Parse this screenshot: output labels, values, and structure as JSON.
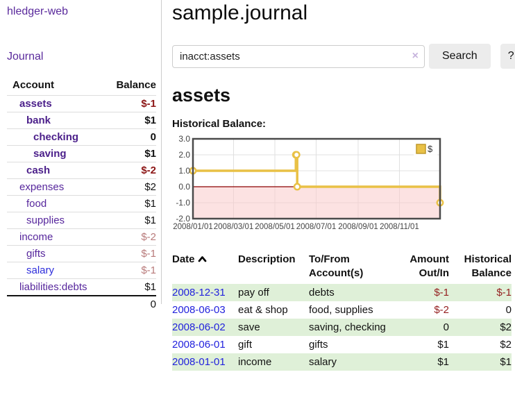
{
  "colors": {
    "link_purple": "#56269c",
    "link_blue": "#2d2ddb",
    "negative_strong": "#8c1616",
    "negative_dim": "#b87a7a",
    "negative_table": "#941f1f",
    "row_stripe_green": "#dff0d8",
    "chart_line_gold": "#e9c146",
    "chart_negative_fill": "#f9caca",
    "chart_zero_line": "#8b0000"
  },
  "brand": {
    "title": "hledger-web"
  },
  "nav": {
    "journal": "Journal"
  },
  "sidebar": {
    "headers": {
      "account": "Account",
      "balance": "Balance"
    },
    "rows": [
      {
        "account": "assets",
        "balance": "$-1",
        "level": 1,
        "matched": true
      },
      {
        "account": "bank",
        "balance": "$1",
        "level": 2,
        "matched": true
      },
      {
        "account": "checking",
        "balance": "0",
        "level": 3,
        "matched": true
      },
      {
        "account": "saving",
        "balance": "$1",
        "level": 3,
        "matched": true
      },
      {
        "account": "cash",
        "balance": "$-2",
        "level": 2,
        "matched": true
      },
      {
        "account": "expenses",
        "balance": "$2",
        "level": 1,
        "matched": false
      },
      {
        "account": "food",
        "balance": "$1",
        "level": 2,
        "matched": false
      },
      {
        "account": "supplies",
        "balance": "$1",
        "level": 2,
        "matched": false
      },
      {
        "account": "income",
        "balance": "$-2",
        "level": 1,
        "matched": false
      },
      {
        "account": "gifts",
        "balance": "$-1",
        "level": 2,
        "matched": false
      },
      {
        "account": "salary",
        "balance": "$-1",
        "level": 2,
        "matched": false,
        "blue_link": true
      },
      {
        "account": "liabilities:debts",
        "balance": "$1",
        "level": 1,
        "matched": false
      }
    ],
    "total": "0"
  },
  "main": {
    "title": "sample.journal",
    "search": {
      "value": "inacct:assets",
      "clear": "×",
      "search_label": "Search",
      "help_label": "?"
    },
    "account_heading": "assets",
    "chart_label": "Historical Balance:"
  },
  "chart_data": {
    "type": "line",
    "step": true,
    "title": "Historical Balance",
    "series": [
      {
        "name": "$",
        "points": [
          [
            "2008-01-01",
            1
          ],
          [
            "2008-06-01",
            2
          ],
          [
            "2008-06-02",
            2
          ],
          [
            "2008-06-03",
            0
          ],
          [
            "2008-12-31",
            -1
          ]
        ]
      }
    ],
    "x_range": [
      "2008-01-01",
      "2008-12-31"
    ],
    "ylim": [
      -2,
      3
    ],
    "y_ticks": [
      "3.0",
      "2.0",
      "1.0",
      "0.0",
      "-1.0",
      "-2.0"
    ],
    "x_ticks": [
      "2008/01/01",
      "2008/03/01",
      "2008/05/01",
      "2008/07/01",
      "2008/09/01",
      "2008/11/01"
    ],
    "legend_position": "top-right",
    "grid": true,
    "negative_region_shaded": true
  },
  "register": {
    "headers": {
      "date": "Date",
      "description": "Description",
      "accounts": "To/From Account(s)",
      "amount": "Amount Out/In",
      "balance": "Historical Balance"
    },
    "rows": [
      {
        "date": "2008-12-31",
        "description": "pay off",
        "accounts": "debts",
        "amount": "$-1",
        "balance": "$-1"
      },
      {
        "date": "2008-06-03",
        "description": "eat & shop",
        "accounts": "food, supplies",
        "amount": "$-2",
        "balance": "0"
      },
      {
        "date": "2008-06-02",
        "description": "save",
        "accounts": "saving, checking",
        "amount": "0",
        "balance": "$2"
      },
      {
        "date": "2008-06-01",
        "description": "gift",
        "accounts": "gifts",
        "amount": "$1",
        "balance": "$2"
      },
      {
        "date": "2008-01-01",
        "description": "income",
        "accounts": "salary",
        "amount": "$1",
        "balance": "$1"
      }
    ]
  }
}
